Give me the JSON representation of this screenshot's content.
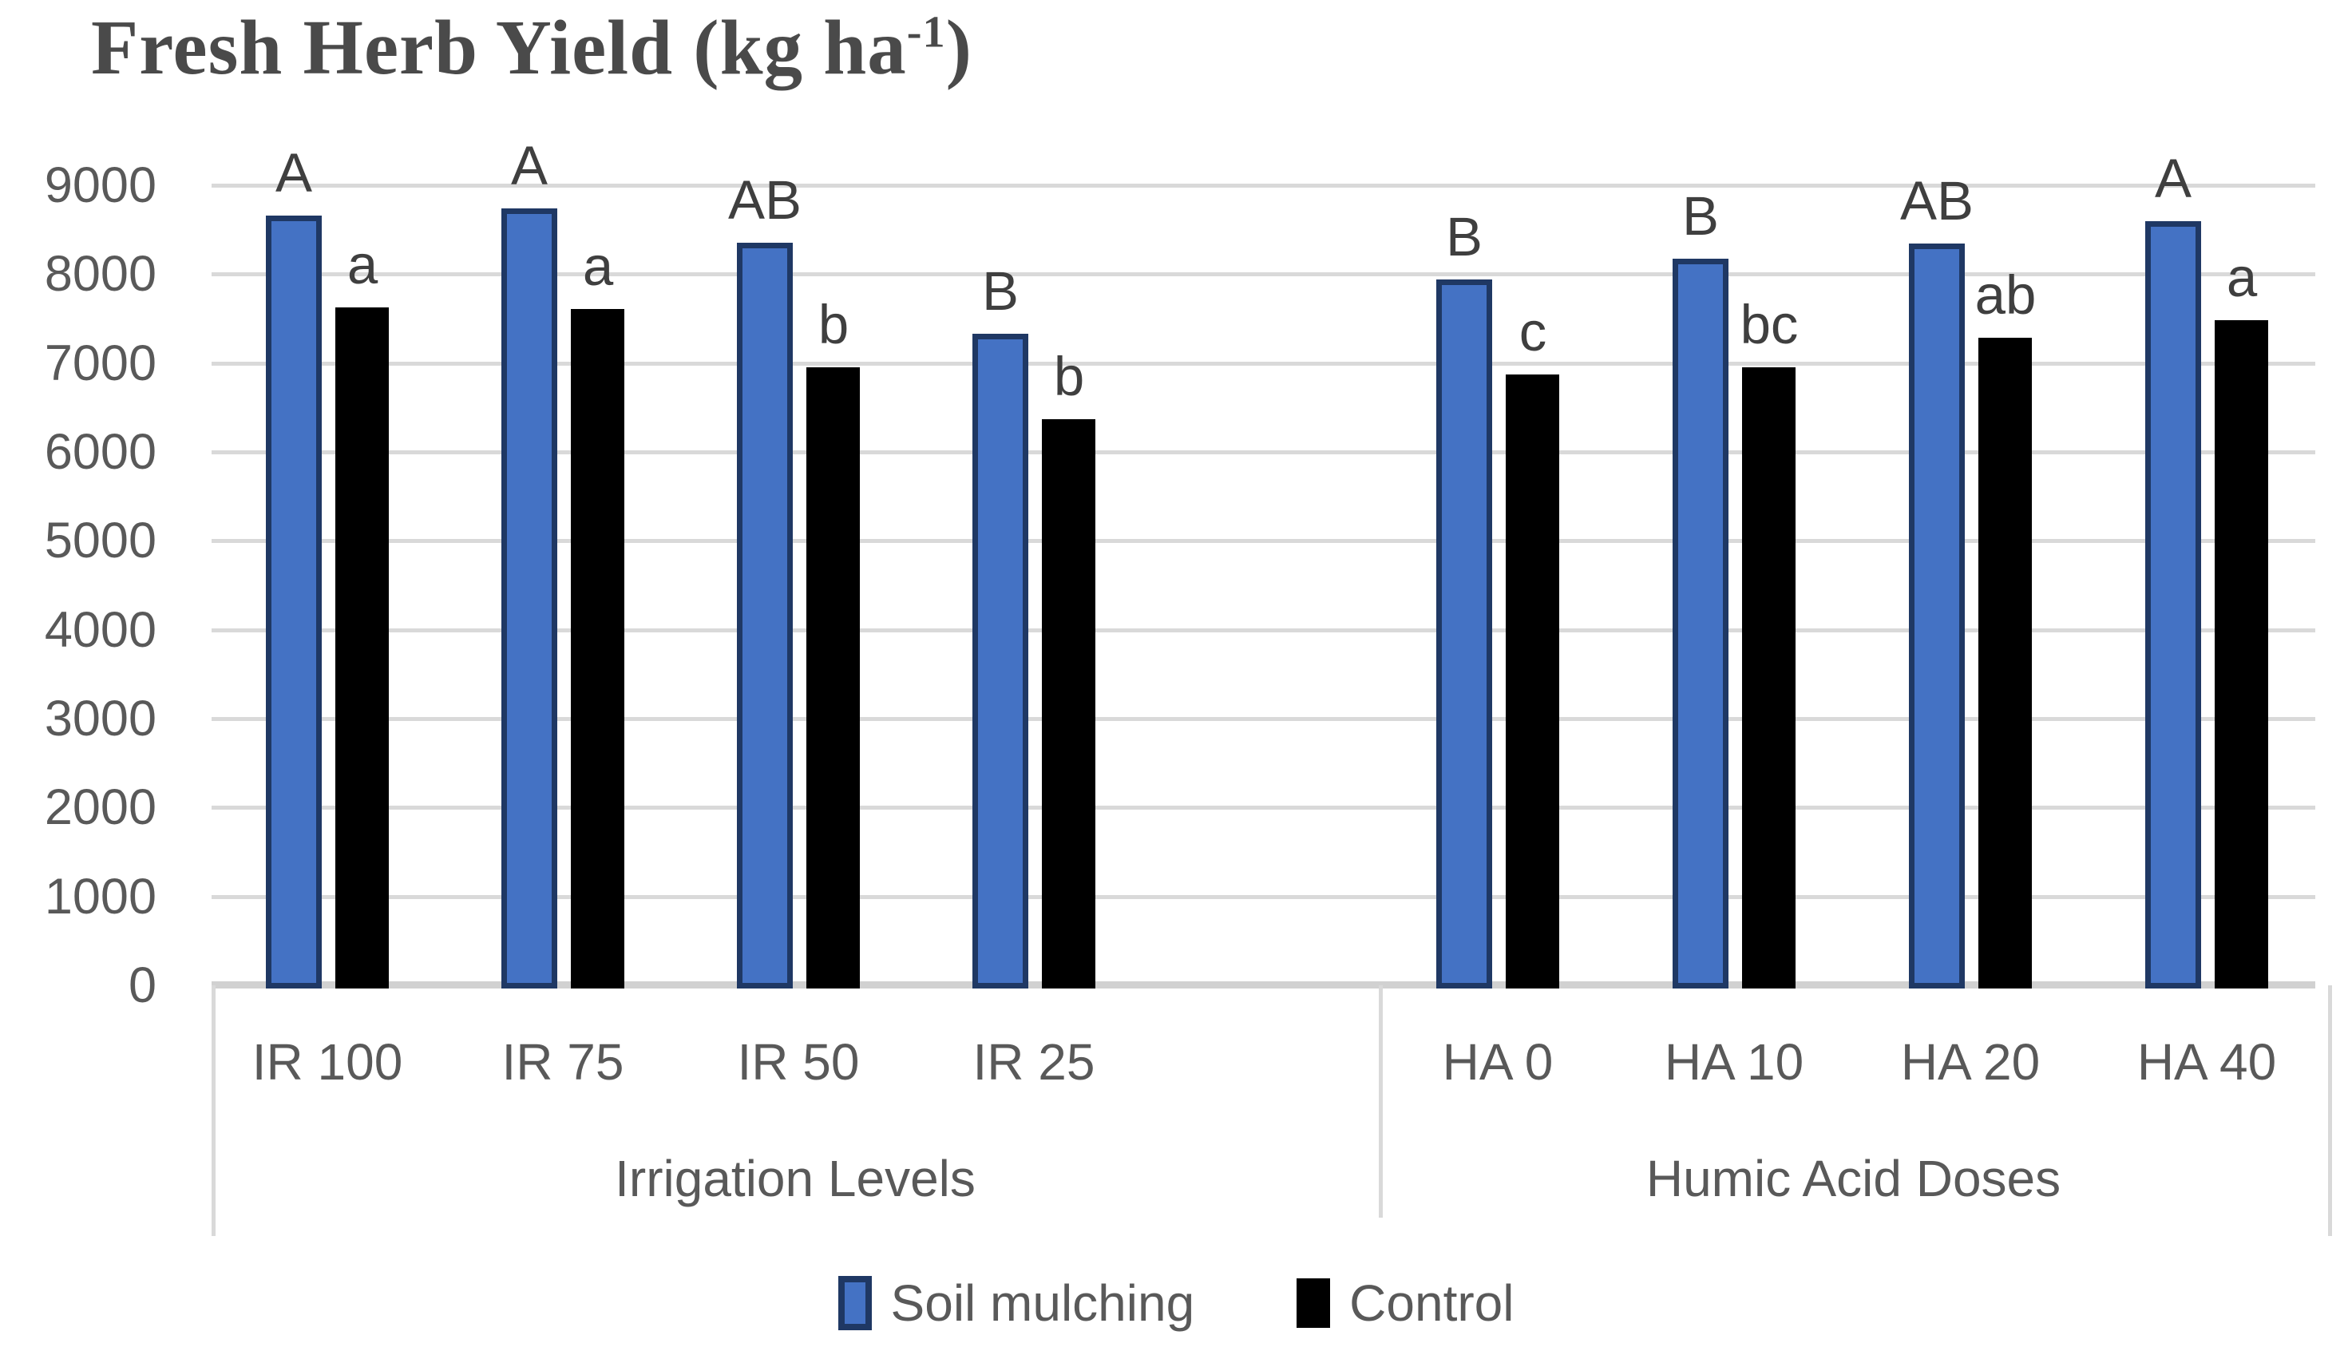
{
  "title": {
    "full": "Fresh Herb Yield (kg ha⁻¹)",
    "main": "Fresh Herb Yield (kg ha",
    "sup": "-1",
    "end": ")"
  },
  "legend": {
    "items": [
      {
        "label": "Soil mulching",
        "color": "#4472C4",
        "border_color": "#1F3864"
      },
      {
        "label": "Control",
        "color": "#000000",
        "border_color": "#000000"
      }
    ],
    "position": "bottom-center"
  },
  "colors": {
    "soil_mulching_fill": "#4472C4",
    "soil_mulching_border": "#1F3864",
    "control_fill": "#000000",
    "gridline": "#d9d9d9",
    "axis_line": "#d1d1d1",
    "axis_text": "#595959",
    "letter_text": "#3f3f3f",
    "title_text": "#4a4a4a",
    "background": "#ffffff"
  },
  "chart_data": {
    "type": "bar",
    "title": "Fresh Herb Yield (kg ha⁻¹)",
    "xlabel": "",
    "ylabel": "",
    "ylim": [
      0,
      9000
    ],
    "y_tick_step": 1000,
    "y_ticks_top_to_bottom": [
      "9000",
      "8000",
      "7000",
      "6000",
      "5000",
      "4000",
      "3000",
      "2000",
      "1000",
      "0"
    ],
    "grid": true,
    "legend_position": "bottom",
    "groups": [
      {
        "label": "Irrigation Levels",
        "categories": [
          "IR 100",
          "IR 75",
          "IR 50",
          "IR 25"
        ]
      },
      {
        "label": "Humic Acid Doses",
        "categories": [
          "HA 0",
          "HA 10",
          "HA 20",
          "HA 40"
        ]
      }
    ],
    "categories": [
      "IR 100",
      "IR 75",
      "IR 50",
      "IR 25",
      "HA 0",
      "HA 10",
      "HA 20",
      "HA 40"
    ],
    "series": [
      {
        "name": "Soil mulching",
        "color": "#4472C4",
        "border_color": "#1F3864",
        "values": [
          8660,
          8740,
          8350,
          7330,
          7940,
          8170,
          8340,
          8600
        ],
        "letters": [
          "A",
          "A",
          "AB",
          "B",
          "B",
          "B",
          "AB",
          "A"
        ]
      },
      {
        "name": "Control",
        "color": "#000000",
        "border_color": "#000000",
        "values": [
          7630,
          7610,
          6950,
          6370,
          6870,
          6950,
          7280,
          7480
        ],
        "letters": [
          "a",
          "a",
          "b",
          "b",
          "c",
          "bc",
          "ab",
          "a"
        ]
      }
    ]
  }
}
